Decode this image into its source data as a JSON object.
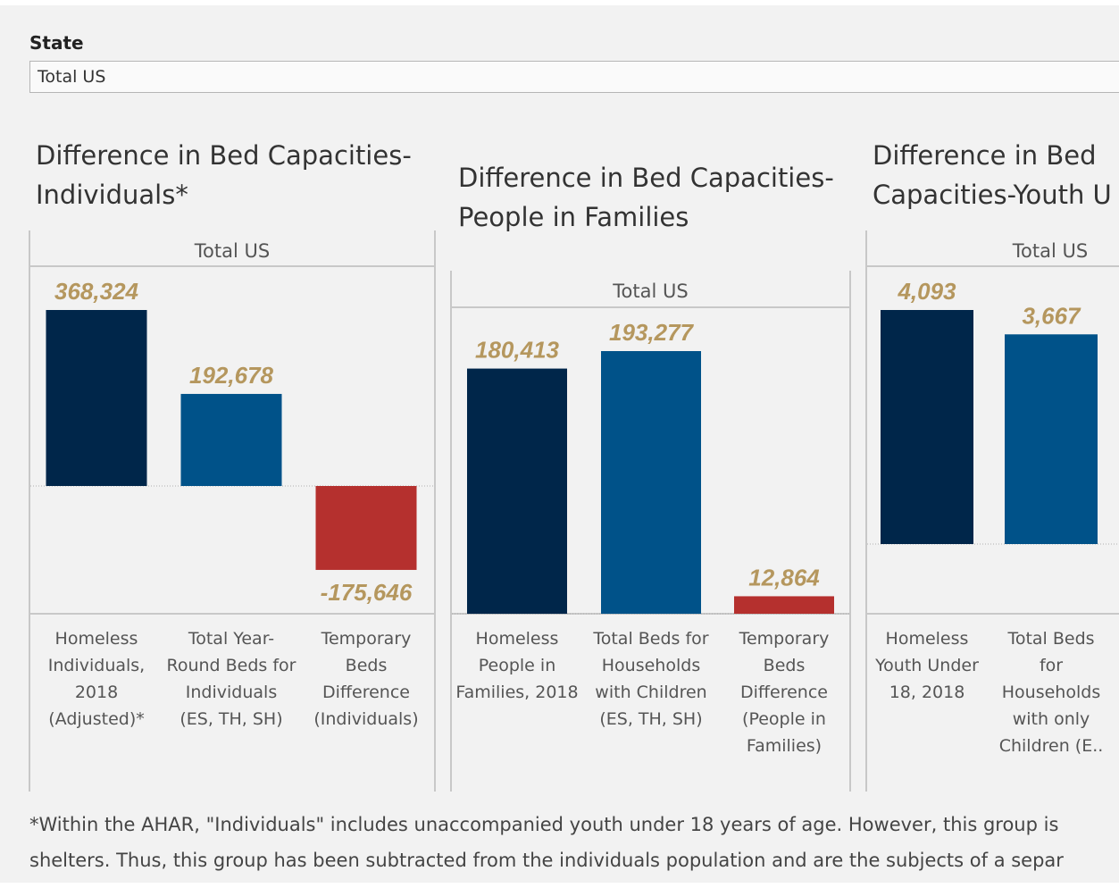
{
  "filter": {
    "label": "State",
    "value": "Total US"
  },
  "charts": [
    {
      "title_line1": "Difference in Bed Capacities-",
      "title_line2": "Individuals*"
    },
    {
      "title_line1": "Difference in Bed Capacities-",
      "title_line2": "People in Families"
    },
    {
      "title_line1": "Difference in Bed",
      "title_line2": "Capacities-Youth U"
    }
  ],
  "chart_data": [
    {
      "type": "bar",
      "title": "Difference in Bed Capacities-Individuals*",
      "column_header": "Total US",
      "categories": [
        [
          "Homeless",
          "Individuals,",
          "2018",
          "(Adjusted)*"
        ],
        [
          "Total Year-",
          "Round Beds for",
          "Individuals",
          "(ES, TH, SH)"
        ],
        [
          "Temporary",
          "Beds",
          "Difference",
          "(Individuals)"
        ]
      ],
      "values": [
        368324,
        192678,
        -175646
      ],
      "labels": [
        "368,324",
        "192,678",
        "-175,646"
      ],
      "colors": [
        "#00264a",
        "#005289",
        "#b5302e"
      ]
    },
    {
      "type": "bar",
      "title": "Difference in Bed Capacities-People in Families",
      "column_header": "Total US",
      "categories": [
        [
          "Homeless",
          "People in",
          "Families, 2018"
        ],
        [
          "Total Beds for",
          "Households",
          "with Children",
          "(ES, TH, SH)"
        ],
        [
          "Temporary",
          "Beds",
          "Difference",
          "(People in",
          "Families)"
        ]
      ],
      "values": [
        180413,
        193277,
        12864
      ],
      "labels": [
        "180,413",
        "193,277",
        "12,864"
      ],
      "colors": [
        "#00264a",
        "#005289",
        "#b5302e"
      ]
    },
    {
      "type": "bar",
      "title": "Difference in Bed Capacities-Youth U",
      "column_header": "Total US",
      "categories": [
        [
          "Homeless",
          "Youth Under",
          "18, 2018"
        ],
        [
          "Total Beds",
          "for",
          "Households",
          "with only",
          "Children (E.."
        ]
      ],
      "values": [
        4093,
        3667
      ],
      "labels": [
        "4,093",
        "3,667"
      ],
      "colors": [
        "#00264a",
        "#005289"
      ]
    }
  ],
  "footnote": {
    "line1": "*Within the AHAR, \"Individuals\" includes unaccompanied youth under 18 years of age.  However, this group is",
    "line2": "shelters.  Thus, this group has been subtracted from the individuals population and are the subjects of a separ"
  }
}
